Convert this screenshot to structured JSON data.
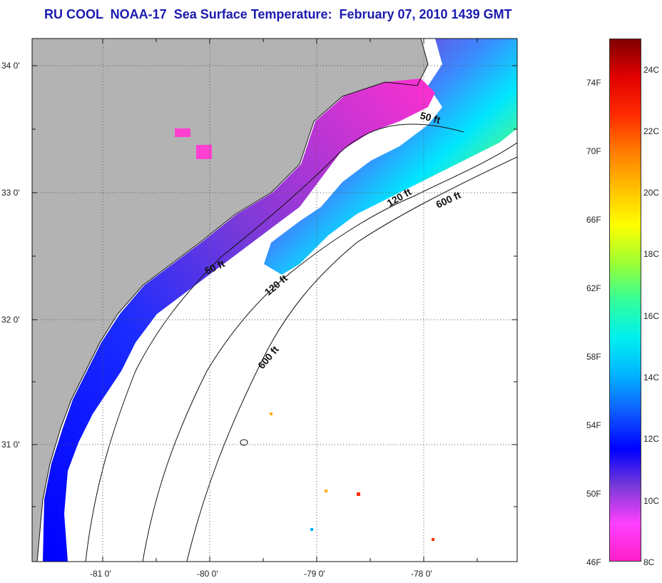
{
  "title": "RU COOL  NOAA-17  Sea Surface Temperature:  February 07, 2010 1439 GMT",
  "map": {
    "lat_labels": [
      "34 0'",
      "33 0'",
      "32 0'",
      "31 0'"
    ],
    "lon_labels": [
      "-81 0'",
      "-80 0'",
      "-79 0'",
      "-78 0'"
    ],
    "land_color": "#b3b3b3",
    "ocean_nodata_color": "#ffffff",
    "isobath_labels": [
      "50 ft",
      "120 ft",
      "600 ft",
      "50 ft",
      "120 ft",
      "600 ft"
    ]
  },
  "colorbar": {
    "celsius_labels": [
      "24C",
      "22C",
      "20C",
      "18C",
      "16C",
      "14C",
      "12C",
      "10C",
      "8C"
    ],
    "fahrenheit_labels": [
      "74F",
      "70F",
      "66F",
      "62F",
      "58F",
      "54F",
      "50F",
      "46F"
    ],
    "range_c": [
      8,
      25
    ],
    "colors": [
      "#ff1fc8",
      "#ff40ff",
      "#7a3ad8",
      "#0000ff",
      "#0f5cff",
      "#00b4ff",
      "#00f0f0",
      "#33ff99",
      "#9cff33",
      "#ffff00",
      "#ffc000",
      "#ff7a00",
      "#ff2a00",
      "#e00000",
      "#800000"
    ]
  }
}
